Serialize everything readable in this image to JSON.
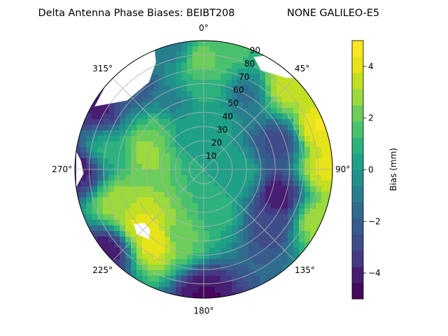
{
  "chart_data": {
    "type": "polar-contour",
    "title": "Delta Antenna Phase Biases: BEIBT208",
    "subtitle": "NONE GALILEO-E5",
    "angular_ticks": [
      {
        "deg": 0,
        "label": "0°"
      },
      {
        "deg": 45,
        "label": "45°"
      },
      {
        "deg": 90,
        "label": "90°"
      },
      {
        "deg": 135,
        "label": "135°"
      },
      {
        "deg": 180,
        "label": "180°"
      },
      {
        "deg": 225,
        "label": "225°"
      },
      {
        "deg": 270,
        "label": "270°"
      },
      {
        "deg": 315,
        "label": "315°"
      }
    ],
    "radial_ticks": [
      10,
      20,
      30,
      40,
      50,
      60,
      70,
      80,
      90
    ],
    "radial_label_angle_deg": 22.5,
    "rlim": [
      0,
      90
    ],
    "theta_zero": "N",
    "theta_direction": "clockwise",
    "grid": true,
    "colorbar": {
      "label": "Bias (mm)",
      "ticks": [
        -4,
        -2,
        0,
        2,
        4
      ],
      "range": [
        -5,
        5
      ],
      "levels": [
        -5,
        -4.375,
        -3.75,
        -3.125,
        -2.5,
        -1.875,
        -1.25,
        -0.625,
        0,
        0.625,
        1.25,
        1.875,
        2.5,
        3.125,
        3.75,
        4.375,
        5
      ],
      "colors": [
        "#46085c",
        "#471e71",
        "#443983",
        "#3e4c8a",
        "#375b8d",
        "#2f6c8e",
        "#277f8e",
        "#21918c",
        "#1fa187",
        "#2db27d",
        "#4ac16d",
        "#6ccd5a",
        "#9bd93c",
        "#c2df23",
        "#e6e419",
        "#fde725"
      ],
      "position": "right"
    },
    "no_data_regions": [
      "around azimuth 300-335°, elevation 70-90",
      "around azimuth 25-45°, elevation 80-90",
      "near azimuth 270°, elevation 85-90",
      "around azimuth 220-230°, elevation 55-65"
    ],
    "bias_features": [
      {
        "az": 0,
        "el": 30,
        "bias": 0.5
      },
      {
        "az": 0,
        "el": 60,
        "bias": 1
      },
      {
        "az": 0,
        "el": 75,
        "bias": 2.5
      },
      {
        "az": 10,
        "el": 85,
        "bias": 1.5
      },
      {
        "az": 30,
        "el": 60,
        "bias": -1.5
      },
      {
        "az": 45,
        "el": 80,
        "bias": 3.5
      },
      {
        "az": 70,
        "el": 85,
        "bias": 4.5
      },
      {
        "az": 90,
        "el": 85,
        "bias": 4
      },
      {
        "az": 115,
        "el": 87,
        "bias": 3
      },
      {
        "az": 70,
        "el": 55,
        "bias": -3
      },
      {
        "az": 110,
        "el": 55,
        "bias": -4.5
      },
      {
        "az": 130,
        "el": 60,
        "bias": -3
      },
      {
        "az": 100,
        "el": 25,
        "bias": 0.5
      },
      {
        "az": 160,
        "el": 30,
        "bias": 1
      },
      {
        "az": 200,
        "el": 50,
        "bias": 2
      },
      {
        "az": 215,
        "el": 60,
        "bias": 4.5
      },
      {
        "az": 230,
        "el": 58,
        "bias": 4
      },
      {
        "az": 250,
        "el": 65,
        "bias": 3
      },
      {
        "az": 280,
        "el": 70,
        "bias": 1
      },
      {
        "az": 290,
        "el": 40,
        "bias": 3
      },
      {
        "az": 310,
        "el": 40,
        "bias": 2
      },
      {
        "az": 330,
        "el": 30,
        "bias": 0
      },
      {
        "az": 335,
        "el": 50,
        "bias": -1
      },
      {
        "az": 320,
        "el": 75,
        "bias": -2.5
      },
      {
        "az": 180,
        "el": 88,
        "bias": -4.5
      },
      {
        "az": 230,
        "el": 88,
        "bias": -4.5
      },
      {
        "az": 270,
        "el": 85,
        "bias": -4.5
      },
      {
        "az": 300,
        "el": 85,
        "bias": -4
      },
      {
        "az": 345,
        "el": 88,
        "bias": -1
      }
    ]
  }
}
